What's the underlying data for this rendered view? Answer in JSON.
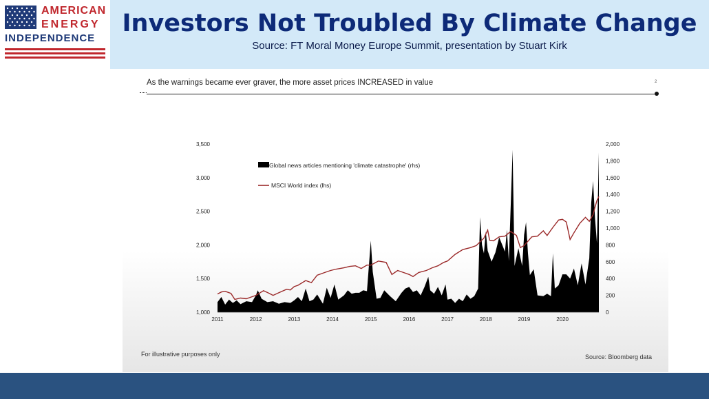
{
  "header": {
    "logo_line1": "AMERICAN",
    "logo_line2": "ENERGY",
    "logo_line3": "INDEPENDENCE",
    "title": "Investors Not Troubled By Climate Change",
    "subtitle": "Source: FT Moral Money Europe Summit, presentation by Stuart Kirk"
  },
  "slide": {
    "caption": "As the warnings became ever graver, the more asset prices INCREASED in value",
    "page_number": "2",
    "note": "For illustrative purposes only",
    "source": "Source: Bloomberg data"
  },
  "colors": {
    "header_bg": "#d3e9f8",
    "title": "#0d2a78",
    "logo_red": "#c0272d",
    "logo_blue": "#1f3a78",
    "line_series": "#9b2a2a",
    "area_series": "#000000",
    "footer": "#2a5280"
  },
  "chart_data": {
    "type": "area+line",
    "title": "",
    "xlabel": "",
    "ylabel": "",
    "x_ticks": [
      "2011",
      "2012",
      "2013",
      "2014",
      "2015",
      "2016",
      "2017",
      "2018",
      "2019",
      "2020"
    ],
    "xlim": [
      2011.0,
      2020.95
    ],
    "y_left": {
      "ticks": [
        "1,000",
        "1,500",
        "2,000",
        "2,500",
        "3,000",
        "3,500"
      ],
      "lim": [
        1000,
        3500
      ]
    },
    "y_right": {
      "ticks": [
        "0",
        "200",
        "400",
        "600",
        "800",
        "1,000",
        "1,200",
        "1,400",
        "1,600",
        "1,800",
        "2,000"
      ],
      "lim": [
        0,
        2000
      ]
    },
    "legend": {
      "placement": "top-left"
    },
    "series": [
      {
        "name": "Global news articles mentioning 'climate catastrophe' (rhs)",
        "type": "area",
        "axis": "right",
        "color": "#000000",
        "points": [
          [
            2011.0,
            120
          ],
          [
            2011.1,
            180
          ],
          [
            2011.2,
            90
          ],
          [
            2011.3,
            150
          ],
          [
            2011.4,
            110
          ],
          [
            2011.5,
            140
          ],
          [
            2011.6,
            95
          ],
          [
            2011.75,
            130
          ],
          [
            2011.9,
            120
          ],
          [
            2012.0,
            200
          ],
          [
            2012.05,
            260
          ],
          [
            2012.15,
            160
          ],
          [
            2012.3,
            120
          ],
          [
            2012.45,
            130
          ],
          [
            2012.6,
            100
          ],
          [
            2012.75,
            120
          ],
          [
            2012.9,
            110
          ],
          [
            2013.0,
            140
          ],
          [
            2013.1,
            180
          ],
          [
            2013.2,
            130
          ],
          [
            2013.3,
            280
          ],
          [
            2013.4,
            130
          ],
          [
            2013.5,
            150
          ],
          [
            2013.6,
            210
          ],
          [
            2013.75,
            100
          ],
          [
            2013.85,
            290
          ],
          [
            2013.95,
            170
          ],
          [
            2014.05,
            330
          ],
          [
            2014.15,
            150
          ],
          [
            2014.3,
            200
          ],
          [
            2014.4,
            260
          ],
          [
            2014.5,
            220
          ],
          [
            2014.6,
            230
          ],
          [
            2014.7,
            230
          ],
          [
            2014.8,
            260
          ],
          [
            2014.9,
            250
          ],
          [
            2015.0,
            850
          ],
          [
            2015.05,
            480
          ],
          [
            2015.15,
            160
          ],
          [
            2015.25,
            170
          ],
          [
            2015.35,
            260
          ],
          [
            2015.5,
            190
          ],
          [
            2015.65,
            130
          ],
          [
            2015.8,
            230
          ],
          [
            2015.9,
            280
          ],
          [
            2016.0,
            300
          ],
          [
            2016.1,
            240
          ],
          [
            2016.2,
            260
          ],
          [
            2016.3,
            200
          ],
          [
            2016.4,
            300
          ],
          [
            2016.5,
            420
          ],
          [
            2016.55,
            260
          ],
          [
            2016.65,
            220
          ],
          [
            2016.75,
            300
          ],
          [
            2016.85,
            200
          ],
          [
            2016.95,
            330
          ],
          [
            2017.0,
            150
          ],
          [
            2017.1,
            160
          ],
          [
            2017.2,
            110
          ],
          [
            2017.3,
            160
          ],
          [
            2017.4,
            130
          ],
          [
            2017.5,
            210
          ],
          [
            2017.6,
            160
          ],
          [
            2017.7,
            190
          ],
          [
            2017.8,
            280
          ],
          [
            2017.85,
            1130
          ],
          [
            2017.9,
            800
          ],
          [
            2017.95,
            700
          ],
          [
            2018.0,
            960
          ],
          [
            2018.05,
            730
          ],
          [
            2018.15,
            600
          ],
          [
            2018.25,
            710
          ],
          [
            2018.35,
            890
          ],
          [
            2018.5,
            720
          ],
          [
            2018.55,
            980
          ],
          [
            2018.6,
            610
          ],
          [
            2018.7,
            1930
          ],
          [
            2018.75,
            550
          ],
          [
            2018.85,
            760
          ],
          [
            2018.95,
            550
          ],
          [
            2019.0,
            920
          ],
          [
            2019.05,
            1070
          ],
          [
            2019.1,
            700
          ],
          [
            2019.15,
            440
          ],
          [
            2019.25,
            510
          ],
          [
            2019.35,
            200
          ],
          [
            2019.5,
            190
          ],
          [
            2019.6,
            220
          ],
          [
            2019.7,
            190
          ],
          [
            2019.75,
            700
          ],
          [
            2019.8,
            280
          ],
          [
            2019.9,
            320
          ],
          [
            2020.0,
            450
          ],
          [
            2020.1,
            450
          ],
          [
            2020.2,
            400
          ],
          [
            2020.3,
            520
          ],
          [
            2020.4,
            320
          ],
          [
            2020.5,
            580
          ],
          [
            2020.6,
            330
          ],
          [
            2020.7,
            640
          ],
          [
            2020.75,
            1300
          ],
          [
            2020.8,
            1560
          ],
          [
            2020.85,
            1120
          ],
          [
            2020.9,
            820
          ],
          [
            2020.95,
            1900
          ]
        ]
      },
      {
        "name": "MSCI World index (lhs)",
        "type": "line",
        "axis": "left",
        "color": "#9b2a2a",
        "points": [
          [
            2011.0,
            1270
          ],
          [
            2011.1,
            1300
          ],
          [
            2011.2,
            1310
          ],
          [
            2011.35,
            1280
          ],
          [
            2011.45,
            1190
          ],
          [
            2011.6,
            1210
          ],
          [
            2011.75,
            1200
          ],
          [
            2011.9,
            1230
          ],
          [
            2012.0,
            1250
          ],
          [
            2012.2,
            1320
          ],
          [
            2012.35,
            1280
          ],
          [
            2012.45,
            1250
          ],
          [
            2012.6,
            1290
          ],
          [
            2012.8,
            1340
          ],
          [
            2012.9,
            1330
          ],
          [
            2013.0,
            1380
          ],
          [
            2013.1,
            1400
          ],
          [
            2013.3,
            1470
          ],
          [
            2013.45,
            1440
          ],
          [
            2013.6,
            1550
          ],
          [
            2013.8,
            1590
          ],
          [
            2013.95,
            1620
          ],
          [
            2014.1,
            1640
          ],
          [
            2014.3,
            1660
          ],
          [
            2014.45,
            1680
          ],
          [
            2014.6,
            1690
          ],
          [
            2014.75,
            1650
          ],
          [
            2014.9,
            1700
          ],
          [
            2015.0,
            1700
          ],
          [
            2015.2,
            1760
          ],
          [
            2015.4,
            1740
          ],
          [
            2015.55,
            1560
          ],
          [
            2015.7,
            1620
          ],
          [
            2015.85,
            1590
          ],
          [
            2016.0,
            1560
          ],
          [
            2016.1,
            1530
          ],
          [
            2016.25,
            1590
          ],
          [
            2016.45,
            1620
          ],
          [
            2016.6,
            1660
          ],
          [
            2016.75,
            1690
          ],
          [
            2016.9,
            1740
          ],
          [
            2017.0,
            1760
          ],
          [
            2017.2,
            1860
          ],
          [
            2017.4,
            1930
          ],
          [
            2017.6,
            1960
          ],
          [
            2017.75,
            1990
          ],
          [
            2017.95,
            2100
          ],
          [
            2018.05,
            2220
          ],
          [
            2018.1,
            2070
          ],
          [
            2018.2,
            2060
          ],
          [
            2018.35,
            2120
          ],
          [
            2018.5,
            2130
          ],
          [
            2018.65,
            2200
          ],
          [
            2018.8,
            2140
          ],
          [
            2018.9,
            1960
          ],
          [
            2019.0,
            1990
          ],
          [
            2019.2,
            2120
          ],
          [
            2019.35,
            2130
          ],
          [
            2019.5,
            2210
          ],
          [
            2019.6,
            2140
          ],
          [
            2019.75,
            2260
          ],
          [
            2019.9,
            2370
          ],
          [
            2020.0,
            2380
          ],
          [
            2020.1,
            2340
          ],
          [
            2020.2,
            2080
          ],
          [
            2020.3,
            2180
          ],
          [
            2020.45,
            2320
          ],
          [
            2020.6,
            2410
          ],
          [
            2020.7,
            2350
          ],
          [
            2020.8,
            2450
          ],
          [
            2020.85,
            2560
          ],
          [
            2020.9,
            2660
          ],
          [
            2020.95,
            2720
          ]
        ]
      }
    ]
  }
}
